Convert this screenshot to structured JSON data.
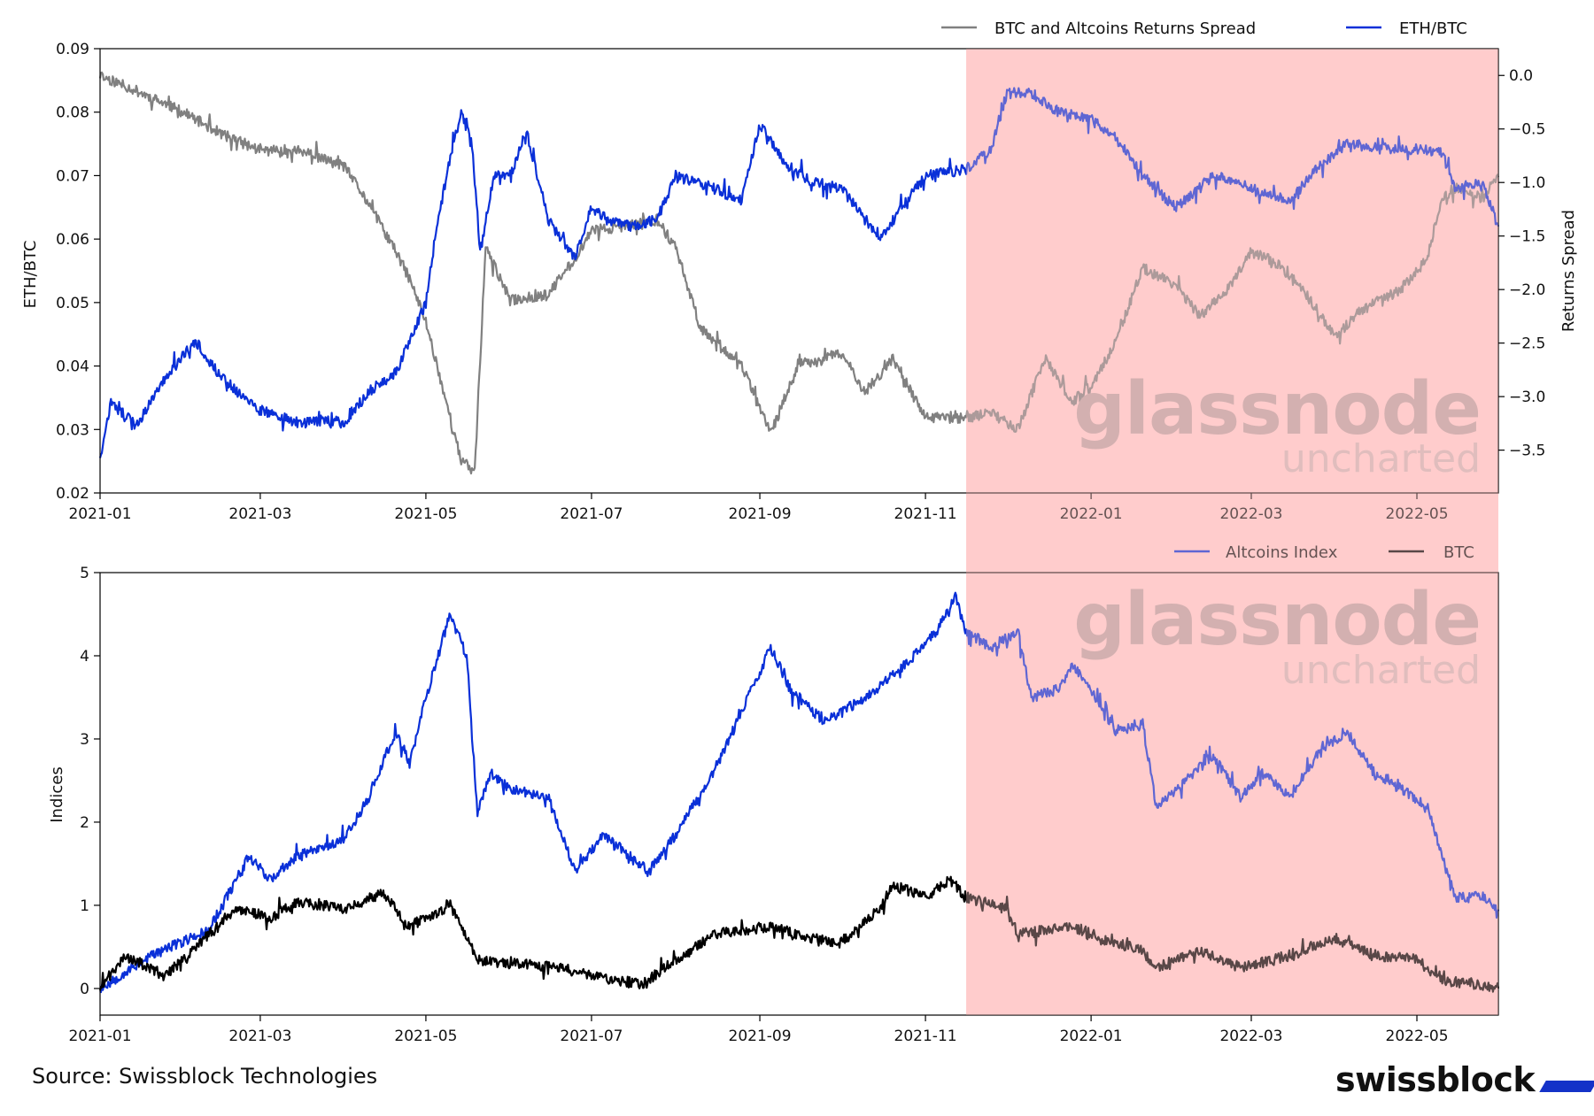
{
  "source_text": "Source: Swissblock Technologies",
  "brand": "swissblock",
  "watermark": {
    "line1": "glassnode",
    "line2": "uncharted"
  },
  "colors": {
    "eth_btc": "#0a30d8",
    "spread": "#808080",
    "altcoins": "#0a30d8",
    "btc": "#000000",
    "highlight": "#ffcccc",
    "brand_mark": "#1432c8"
  },
  "chart_data": [
    {
      "type": "line",
      "x_axis_type": "date",
      "xlim": [
        "2021-01-01",
        "2022-05-31"
      ],
      "x_ticks": [
        "2021-01",
        "2021-03",
        "2021-05",
        "2021-07",
        "2021-09",
        "2021-11",
        "2022-01",
        "2022-03",
        "2022-05"
      ],
      "ylabel": "ETH/BTC",
      "ylim": [
        0.02,
        0.09
      ],
      "y_ticks": [
        "0.02",
        "0.03",
        "0.04",
        "0.05",
        "0.06",
        "0.07",
        "0.08",
        "0.09"
      ],
      "y2label": "Returns Spread",
      "y2lim": [
        -3.9,
        0.25
      ],
      "y2_ticks": [
        "0.0",
        "−0.5",
        "−1.0",
        "−1.5",
        "−2.0",
        "−2.5",
        "−3.0",
        "−3.5"
      ],
      "y2_tick_values": [
        0,
        -0.5,
        -1.0,
        -1.5,
        -2.0,
        -2.5,
        -3.0,
        -3.5
      ],
      "legend_position": "top-right, above plot",
      "highlight_region": [
        "2021-11-16",
        "2022-05-31"
      ],
      "series": [
        {
          "name": "BTC and Altcoins Returns Spread",
          "axis": "right",
          "points": [
            [
              "2021-01-01",
              0.0
            ],
            [
              "2021-01-15",
              -0.15
            ],
            [
              "2021-02-01",
              -0.35
            ],
            [
              "2021-02-15",
              -0.55
            ],
            [
              "2021-03-01",
              -0.7
            ],
            [
              "2021-03-15",
              -0.7
            ],
            [
              "2021-04-01",
              -0.85
            ],
            [
              "2021-04-10",
              -1.2
            ],
            [
              "2021-04-20",
              -1.65
            ],
            [
              "2021-04-25",
              -1.9
            ],
            [
              "2021-05-01",
              -2.3
            ],
            [
              "2021-05-08",
              -3.0
            ],
            [
              "2021-05-14",
              -3.6
            ],
            [
              "2021-05-19",
              -3.7
            ],
            [
              "2021-05-23",
              -1.6
            ],
            [
              "2021-06-01",
              -2.1
            ],
            [
              "2021-06-15",
              -2.05
            ],
            [
              "2021-06-25",
              -1.7
            ],
            [
              "2021-07-01",
              -1.45
            ],
            [
              "2021-07-15",
              -1.4
            ],
            [
              "2021-07-25",
              -1.35
            ],
            [
              "2021-08-01",
              -1.6
            ],
            [
              "2021-08-10",
              -2.35
            ],
            [
              "2021-08-25",
              -2.7
            ],
            [
              "2021-09-01",
              -3.1
            ],
            [
              "2021-09-05",
              -3.35
            ],
            [
              "2021-09-15",
              -2.7
            ],
            [
              "2021-10-01",
              -2.6
            ],
            [
              "2021-10-10",
              -2.95
            ],
            [
              "2021-10-20",
              -2.65
            ],
            [
              "2021-11-01",
              -3.2
            ],
            [
              "2021-11-16",
              -3.2
            ],
            [
              "2021-11-25",
              -3.15
            ],
            [
              "2021-12-05",
              -3.3
            ],
            [
              "2021-12-15",
              -2.65
            ],
            [
              "2021-12-25",
              -3.05
            ],
            [
              "2022-01-01",
              -2.9
            ],
            [
              "2022-01-10",
              -2.5
            ],
            [
              "2022-01-20",
              -1.8
            ],
            [
              "2022-02-01",
              -1.95
            ],
            [
              "2022-02-10",
              -2.25
            ],
            [
              "2022-02-20",
              -2.0
            ],
            [
              "2022-03-01",
              -1.65
            ],
            [
              "2022-03-10",
              -1.75
            ],
            [
              "2022-03-20",
              -2.0
            ],
            [
              "2022-04-01",
              -2.45
            ],
            [
              "2022-04-10",
              -2.2
            ],
            [
              "2022-04-25",
              -2.0
            ],
            [
              "2022-05-05",
              -1.7
            ],
            [
              "2022-05-10",
              -1.15
            ],
            [
              "2022-05-15",
              -1.05
            ],
            [
              "2022-05-25",
              -1.15
            ],
            [
              "2022-05-31",
              -0.95
            ]
          ]
        },
        {
          "name": "ETH/BTC",
          "axis": "left",
          "points": [
            [
              "2021-01-01",
              0.025
            ],
            [
              "2021-01-05",
              0.034
            ],
            [
              "2021-01-15",
              0.031
            ],
            [
              "2021-01-25",
              0.038
            ],
            [
              "2021-02-05",
              0.044
            ],
            [
              "2021-02-15",
              0.038
            ],
            [
              "2021-03-01",
              0.033
            ],
            [
              "2021-03-15",
              0.031
            ],
            [
              "2021-03-25",
              0.0315
            ],
            [
              "2021-04-01",
              0.031
            ],
            [
              "2021-04-10",
              0.036
            ],
            [
              "2021-04-20",
              0.039
            ],
            [
              "2021-05-01",
              0.05
            ],
            [
              "2021-05-05",
              0.062
            ],
            [
              "2021-05-10",
              0.073
            ],
            [
              "2021-05-14",
              0.08
            ],
            [
              "2021-05-18",
              0.075
            ],
            [
              "2021-05-21",
              0.058
            ],
            [
              "2021-05-26",
              0.07
            ],
            [
              "2021-06-01",
              0.07
            ],
            [
              "2021-06-07",
              0.077
            ],
            [
              "2021-06-15",
              0.063
            ],
            [
              "2021-06-25",
              0.057
            ],
            [
              "2021-07-01",
              0.065
            ],
            [
              "2021-07-07",
              0.063
            ],
            [
              "2021-07-15",
              0.062
            ],
            [
              "2021-07-25",
              0.063
            ],
            [
              "2021-08-01",
              0.07
            ],
            [
              "2021-08-15",
              0.068
            ],
            [
              "2021-08-25",
              0.066
            ],
            [
              "2021-09-01",
              0.078
            ],
            [
              "2021-09-10",
              0.072
            ],
            [
              "2021-09-20",
              0.069
            ],
            [
              "2021-10-01",
              0.068
            ],
            [
              "2021-10-15",
              0.06
            ],
            [
              "2021-11-01",
              0.07
            ],
            [
              "2021-11-16",
              0.071
            ],
            [
              "2021-11-25",
              0.074
            ],
            [
              "2021-12-01",
              0.083
            ],
            [
              "2021-12-10",
              0.083
            ],
            [
              "2021-12-20",
              0.08
            ],
            [
              "2022-01-01",
              0.079
            ],
            [
              "2022-01-10",
              0.076
            ],
            [
              "2022-01-20",
              0.07
            ],
            [
              "2022-02-01",
              0.065
            ],
            [
              "2022-02-15",
              0.07
            ],
            [
              "2022-03-01",
              0.068
            ],
            [
              "2022-03-15",
              0.066
            ],
            [
              "2022-03-25",
              0.071
            ],
            [
              "2022-04-05",
              0.075
            ],
            [
              "2022-04-25",
              0.074
            ],
            [
              "2022-05-10",
              0.074
            ],
            [
              "2022-05-15",
              0.068
            ],
            [
              "2022-05-25",
              0.069
            ],
            [
              "2022-05-31",
              0.062
            ]
          ]
        }
      ]
    },
    {
      "type": "line",
      "x_axis_type": "date",
      "xlim": [
        "2021-01-01",
        "2022-05-31"
      ],
      "x_ticks": [
        "2021-01",
        "2021-03",
        "2021-05",
        "2021-07",
        "2021-09",
        "2021-11",
        "2022-01",
        "2022-03",
        "2022-05"
      ],
      "ylabel": "Indices",
      "ylim": [
        -0.32,
        5.0
      ],
      "y_ticks": [
        "0",
        "1",
        "2",
        "3",
        "4",
        "5"
      ],
      "legend_position": "top-right, above plot",
      "highlight_region": [
        "2021-11-16",
        "2022-05-31"
      ],
      "series": [
        {
          "name": "Altcoins Index",
          "points": [
            [
              "2021-01-01",
              0.0
            ],
            [
              "2021-01-20",
              0.4
            ],
            [
              "2021-02-10",
              0.7
            ],
            [
              "2021-02-25",
              1.6
            ],
            [
              "2021-03-05",
              1.3
            ],
            [
              "2021-03-15",
              1.6
            ],
            [
              "2021-04-01",
              1.8
            ],
            [
              "2021-04-10",
              2.3
            ],
            [
              "2021-04-20",
              3.1
            ],
            [
              "2021-04-25",
              2.7
            ],
            [
              "2021-05-01",
              3.5
            ],
            [
              "2021-05-10",
              4.5
            ],
            [
              "2021-05-16",
              4.0
            ],
            [
              "2021-05-20",
              2.1
            ],
            [
              "2021-05-25",
              2.6
            ],
            [
              "2021-06-01",
              2.4
            ],
            [
              "2021-06-15",
              2.3
            ],
            [
              "2021-06-25",
              1.4
            ],
            [
              "2021-07-05",
              1.85
            ],
            [
              "2021-07-15",
              1.6
            ],
            [
              "2021-07-22",
              1.4
            ],
            [
              "2021-08-01",
              1.85
            ],
            [
              "2021-08-15",
              2.6
            ],
            [
              "2021-08-25",
              3.3
            ],
            [
              "2021-09-05",
              4.1
            ],
            [
              "2021-09-12",
              3.6
            ],
            [
              "2021-09-25",
              3.2
            ],
            [
              "2021-10-10",
              3.5
            ],
            [
              "2021-10-25",
              3.9
            ],
            [
              "2021-11-05",
              4.3
            ],
            [
              "2021-11-12",
              4.7
            ],
            [
              "2021-11-16",
              4.3
            ],
            [
              "2021-11-25",
              4.1
            ],
            [
              "2021-12-05",
              4.3
            ],
            [
              "2021-12-10",
              3.5
            ],
            [
              "2021-12-20",
              3.6
            ],
            [
              "2021-12-25",
              3.9
            ],
            [
              "2022-01-01",
              3.6
            ],
            [
              "2022-01-10",
              3.1
            ],
            [
              "2022-01-20",
              3.2
            ],
            [
              "2022-01-25",
              2.2
            ],
            [
              "2022-02-05",
              2.5
            ],
            [
              "2022-02-15",
              2.8
            ],
            [
              "2022-02-25",
              2.3
            ],
            [
              "2022-03-05",
              2.6
            ],
            [
              "2022-03-15",
              2.3
            ],
            [
              "2022-03-25",
              2.8
            ],
            [
              "2022-04-05",
              3.1
            ],
            [
              "2022-04-15",
              2.6
            ],
            [
              "2022-04-25",
              2.4
            ],
            [
              "2022-05-05",
              2.2
            ],
            [
              "2022-05-10",
              1.6
            ],
            [
              "2022-05-15",
              1.1
            ],
            [
              "2022-05-25",
              1.1
            ],
            [
              "2022-05-31",
              0.95
            ]
          ]
        },
        {
          "name": "BTC",
          "points": [
            [
              "2021-01-01",
              0.0
            ],
            [
              "2021-01-10",
              0.4
            ],
            [
              "2021-01-25",
              0.15
            ],
            [
              "2021-02-10",
              0.65
            ],
            [
              "2021-02-21",
              0.95
            ],
            [
              "2021-03-05",
              0.85
            ],
            [
              "2021-03-15",
              1.05
            ],
            [
              "2021-04-01",
              0.95
            ],
            [
              "2021-04-15",
              1.15
            ],
            [
              "2021-04-25",
              0.75
            ],
            [
              "2021-05-10",
              1.0
            ],
            [
              "2021-05-20",
              0.35
            ],
            [
              "2021-06-01",
              0.3
            ],
            [
              "2021-06-20",
              0.25
            ],
            [
              "2021-07-01",
              0.15
            ],
            [
              "2021-07-20",
              0.05
            ],
            [
              "2021-08-01",
              0.35
            ],
            [
              "2021-08-15",
              0.65
            ],
            [
              "2021-09-05",
              0.75
            ],
            [
              "2021-09-20",
              0.6
            ],
            [
              "2021-10-01",
              0.55
            ],
            [
              "2021-10-15",
              0.95
            ],
            [
              "2021-10-20",
              1.25
            ],
            [
              "2021-11-01",
              1.1
            ],
            [
              "2021-11-10",
              1.3
            ],
            [
              "2021-11-16",
              1.1
            ],
            [
              "2021-12-01",
              0.95
            ],
            [
              "2021-12-05",
              0.65
            ],
            [
              "2021-12-25",
              0.75
            ],
            [
              "2022-01-05",
              0.6
            ],
            [
              "2022-01-20",
              0.45
            ],
            [
              "2022-01-25",
              0.25
            ],
            [
              "2022-02-10",
              0.45
            ],
            [
              "2022-02-25",
              0.25
            ],
            [
              "2022-03-10",
              0.35
            ],
            [
              "2022-04-01",
              0.6
            ],
            [
              "2022-04-15",
              0.4
            ],
            [
              "2022-05-01",
              0.35
            ],
            [
              "2022-05-10",
              0.1
            ],
            [
              "2022-05-31",
              0.0
            ]
          ]
        }
      ]
    }
  ]
}
